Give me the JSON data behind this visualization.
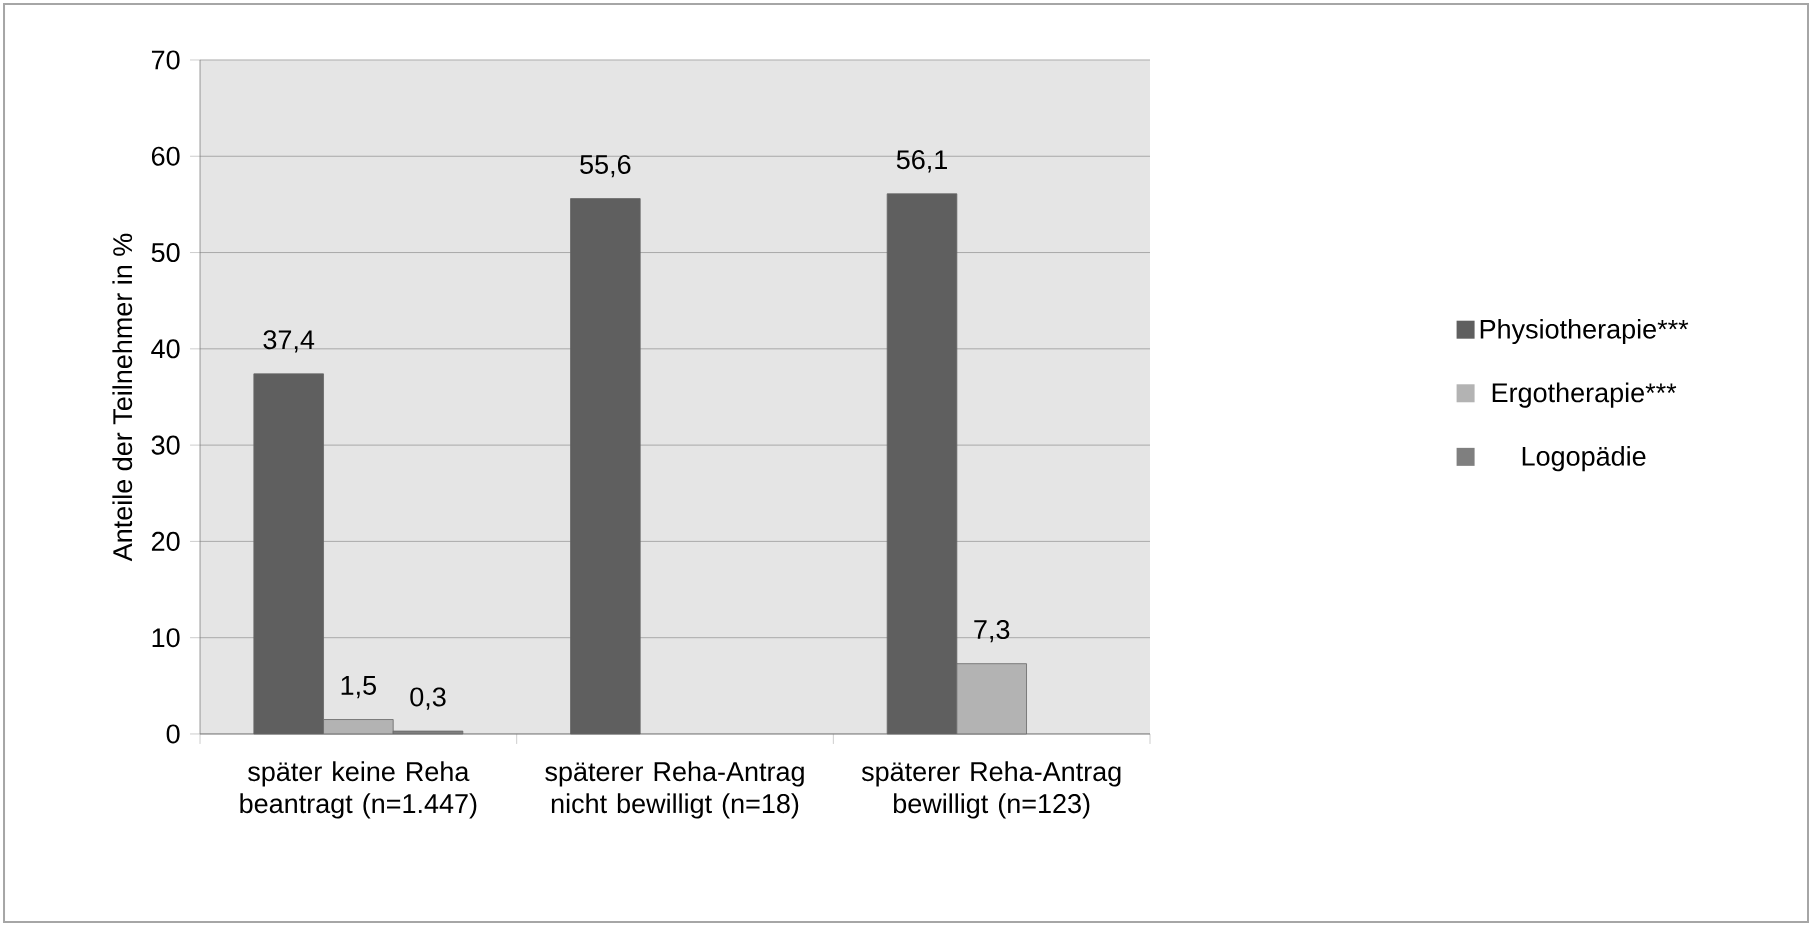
{
  "chart_data": {
    "type": "bar",
    "categories": [
      "später keine Reha beantragt (n=1.447)",
      "späterer Reha-Antrag nicht bewilligt (n=18)",
      "späterer Reha-Antrag bewilligt (n=123)"
    ],
    "ylabel": "Anteile der Teilnehmer in %",
    "series": [
      {
        "name": "Physiotherapie***",
        "color": "#5f5f5f",
        "values": [
          37.4,
          55.6,
          56.1
        ],
        "value_labels": [
          "37,4",
          "55,6",
          "56,1"
        ]
      },
      {
        "name": "Ergotherapie***",
        "color": "#b3b3b3",
        "values": [
          1.5,
          null,
          7.3
        ],
        "value_labels": [
          "1,5",
          null,
          "7,3"
        ]
      },
      {
        "name": "Logopädie",
        "color": "#7f7f7f",
        "values": [
          0.3,
          null,
          null
        ],
        "value_labels": [
          "0,3",
          null,
          null
        ]
      }
    ],
    "ylim": [
      0,
      70
    ],
    "yticks": [
      0,
      10,
      20,
      30,
      40,
      50,
      60,
      70
    ],
    "grid": "y",
    "legend": "right"
  }
}
